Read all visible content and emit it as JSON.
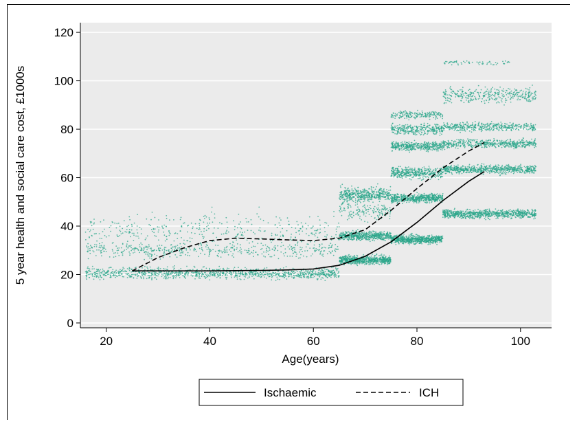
{
  "chart_data": {
    "type": "scatter",
    "title": "",
    "xlabel": "Age(years)",
    "ylabel": "5 year health and social care cost, £1000s",
    "xlim": [
      15,
      106
    ],
    "ylim": [
      -2,
      124
    ],
    "xticks": [
      20,
      40,
      60,
      80,
      100
    ],
    "yticks": [
      0,
      20,
      40,
      60,
      80,
      100,
      120
    ],
    "grid": "horizontal",
    "background": "#ebebeb",
    "legend_position": "bottom",
    "point_color": "#2aa58a",
    "scatter_clusters": [
      {
        "x": [
          16,
          65
        ],
        "y_center": 20.5,
        "spread": 2.0,
        "n": 1100
      },
      {
        "x": [
          16,
          65
        ],
        "y_center": 30,
        "spread": 2.5,
        "n": 450
      },
      {
        "x": [
          16,
          65
        ],
        "y_center": 38,
        "spread": 6,
        "n": 400
      },
      {
        "x": [
          65,
          75
        ],
        "y_center": 26,
        "spread": 1.5,
        "n": 650
      },
      {
        "x": [
          65,
          75
        ],
        "y_center": 36,
        "spread": 1.5,
        "n": 550
      },
      {
        "x": [
          65,
          75
        ],
        "y_center": 53,
        "spread": 2.5,
        "n": 450
      },
      {
        "x": [
          65,
          75
        ],
        "y_center": 46,
        "spread": 3,
        "n": 150
      },
      {
        "x": [
          75,
          85
        ],
        "y_center": 34.5,
        "spread": 1.5,
        "n": 700
      },
      {
        "x": [
          75,
          85
        ],
        "y_center": 51.5,
        "spread": 1.5,
        "n": 550
      },
      {
        "x": [
          75,
          85
        ],
        "y_center": 62,
        "spread": 2,
        "n": 400
      },
      {
        "x": [
          75,
          85
        ],
        "y_center": 73,
        "spread": 1.5,
        "n": 400
      },
      {
        "x": [
          75,
          85
        ],
        "y_center": 80,
        "spread": 2,
        "n": 300
      },
      {
        "x": [
          75,
          85
        ],
        "y_center": 86,
        "spread": 1.5,
        "n": 180
      },
      {
        "x": [
          85,
          103
        ],
        "y_center": 45,
        "spread": 1.5,
        "n": 800
      },
      {
        "x": [
          85,
          103
        ],
        "y_center": 63.5,
        "spread": 1.5,
        "n": 650
      },
      {
        "x": [
          85,
          103
        ],
        "y_center": 74,
        "spread": 1.5,
        "n": 500
      },
      {
        "x": [
          85,
          103
        ],
        "y_center": 81,
        "spread": 1.5,
        "n": 400
      },
      {
        "x": [
          85,
          103
        ],
        "y_center": 94,
        "spread": 2.5,
        "n": 350
      },
      {
        "x": [
          85,
          98
        ],
        "y_center": 107.5,
        "spread": 0.8,
        "n": 60
      }
    ],
    "series": [
      {
        "name": "Ischaemic",
        "style": "solid",
        "color": "#000000",
        "x": [
          25,
          30,
          35,
          40,
          45,
          50,
          55,
          60,
          65,
          70,
          75,
          80,
          85,
          90,
          93
        ],
        "y": [
          21.5,
          21.5,
          21.5,
          21.5,
          21.6,
          21.7,
          21.9,
          22.3,
          23.8,
          27.5,
          33.5,
          41.5,
          50.5,
          58.5,
          62.5
        ]
      },
      {
        "name": "ICH",
        "style": "dashed",
        "color": "#000000",
        "x": [
          25,
          30,
          35,
          40,
          45,
          50,
          55,
          60,
          65,
          70,
          75,
          80,
          85,
          90,
          93
        ],
        "y": [
          21.5,
          27.0,
          31.0,
          34.0,
          35.0,
          34.7,
          34.3,
          34.0,
          35.0,
          38.5,
          46.5,
          55.5,
          64.0,
          71.0,
          74.5
        ]
      }
    ]
  }
}
